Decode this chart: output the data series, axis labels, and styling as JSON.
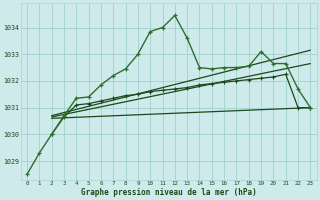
{
  "background_color": "#ceeaea",
  "grid_color": "#a8d4d4",
  "lc1": "#2d6e2d",
  "lc2": "#1a4a1a",
  "xlabel": "Graphe pression niveau de la mer (hPa)",
  "xlim": [
    -0.5,
    23.5
  ],
  "ylim": [
    1028.3,
    1034.9
  ],
  "yticks": [
    1029,
    1030,
    1031,
    1032,
    1033,
    1034
  ],
  "xticks": [
    0,
    1,
    2,
    3,
    4,
    5,
    6,
    7,
    8,
    9,
    10,
    11,
    12,
    13,
    14,
    15,
    16,
    17,
    18,
    19,
    20,
    21,
    22,
    23
  ],
  "curve_main": {
    "x": [
      0,
      1,
      2,
      3,
      4,
      5,
      6,
      7,
      8,
      9,
      10,
      11,
      12,
      13,
      14,
      15,
      16,
      17,
      18,
      19,
      20,
      21,
      22,
      23
    ],
    "y": [
      1028.5,
      1029.3,
      1030.0,
      1030.7,
      1031.35,
      1031.4,
      1031.85,
      1032.2,
      1032.45,
      1033.0,
      1033.85,
      1034.0,
      1034.45,
      1033.6,
      1032.5,
      1032.45,
      1032.5,
      1032.5,
      1032.55,
      1033.1,
      1032.65,
      1032.65,
      1031.7,
      1031.0
    ]
  },
  "curve_secondary": {
    "x": [
      2,
      3,
      4,
      5,
      6,
      7,
      8,
      9,
      10,
      11,
      12,
      13,
      14,
      15,
      16,
      17,
      18,
      19,
      20,
      21,
      22,
      23
    ],
    "y": [
      1030.0,
      1030.65,
      1031.1,
      1031.15,
      1031.25,
      1031.35,
      1031.45,
      1031.5,
      1031.6,
      1031.65,
      1031.7,
      1031.75,
      1031.85,
      1031.9,
      1031.95,
      1032.0,
      1032.05,
      1032.1,
      1032.15,
      1032.25,
      1031.0,
      1031.0
    ]
  },
  "straight_lines": [
    {
      "x": [
        2,
        23
      ],
      "y": [
        1030.7,
        1033.15
      ]
    },
    {
      "x": [
        2,
        23
      ],
      "y": [
        1030.65,
        1032.65
      ]
    },
    {
      "x": [
        2,
        23
      ],
      "y": [
        1030.6,
        1031.0
      ]
    }
  ]
}
